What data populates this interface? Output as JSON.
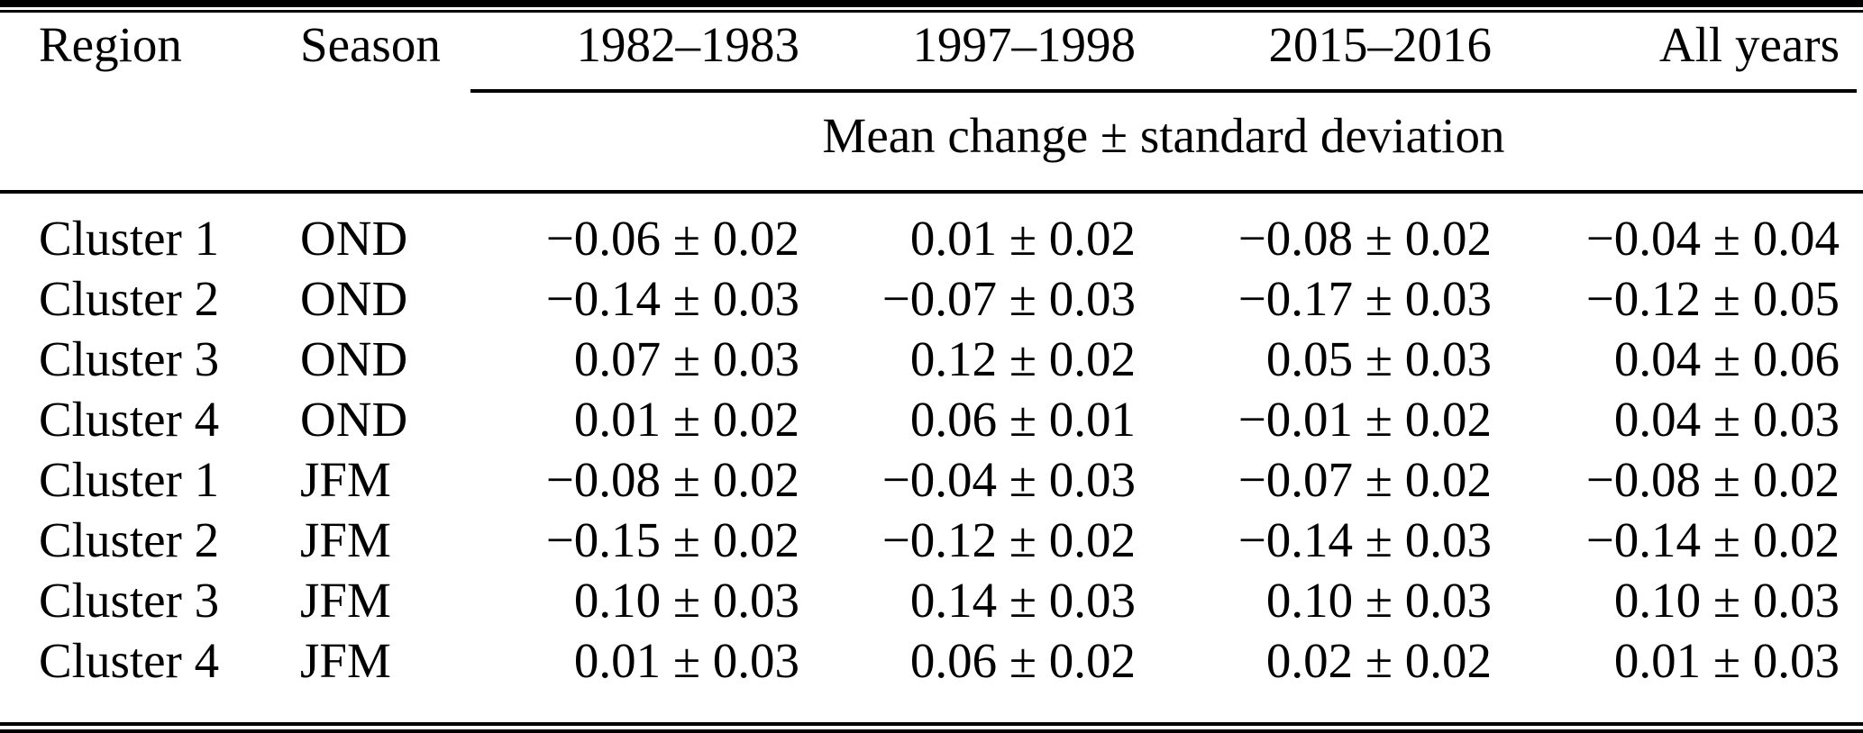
{
  "table": {
    "columns": [
      "Region",
      "Season",
      "1982–1983",
      "1997–1998",
      "2015–2016",
      "All years"
    ],
    "subheader": "Mean change ± standard deviation",
    "rows": [
      {
        "region": "Cluster 1",
        "season": "OND",
        "values": [
          "−0.06 ± 0.02",
          "0.01 ± 0.02",
          "−0.08 ± 0.02",
          "−0.04 ± 0.04"
        ]
      },
      {
        "region": "Cluster 2",
        "season": "OND",
        "values": [
          "−0.14 ± 0.03",
          "−0.07 ± 0.03",
          "−0.17 ± 0.03",
          "−0.12 ± 0.05"
        ]
      },
      {
        "region": "Cluster 3",
        "season": "OND",
        "values": [
          "0.07 ± 0.03",
          "0.12 ± 0.02",
          "0.05 ± 0.03",
          "0.04 ± 0.06"
        ]
      },
      {
        "region": "Cluster 4",
        "season": "OND",
        "values": [
          "0.01 ± 0.02",
          "0.06 ± 0.01",
          "−0.01 ± 0.02",
          "0.04 ± 0.03"
        ]
      },
      {
        "region": "Cluster 1",
        "season": "JFM",
        "values": [
          "−0.08 ± 0.02",
          "−0.04 ± 0.03",
          "−0.07 ± 0.02",
          "−0.08 ± 0.02"
        ]
      },
      {
        "region": "Cluster 2",
        "season": "JFM",
        "values": [
          "−0.15 ± 0.02",
          "−0.12 ± 0.02",
          "−0.14 ± 0.03",
          "−0.14 ± 0.02"
        ]
      },
      {
        "region": "Cluster 3",
        "season": "JFM",
        "values": [
          "0.10 ± 0.03",
          "0.14 ± 0.03",
          "0.10 ± 0.03",
          "0.10 ± 0.03"
        ]
      },
      {
        "region": "Cluster 4",
        "season": "JFM",
        "values": [
          "0.01 ± 0.03",
          "0.06 ± 0.02",
          "0.02 ± 0.02",
          "0.01 ± 0.03"
        ]
      }
    ],
    "colors": {
      "text": "#000000",
      "rule": "#000000",
      "background": "#ffffff"
    }
  }
}
